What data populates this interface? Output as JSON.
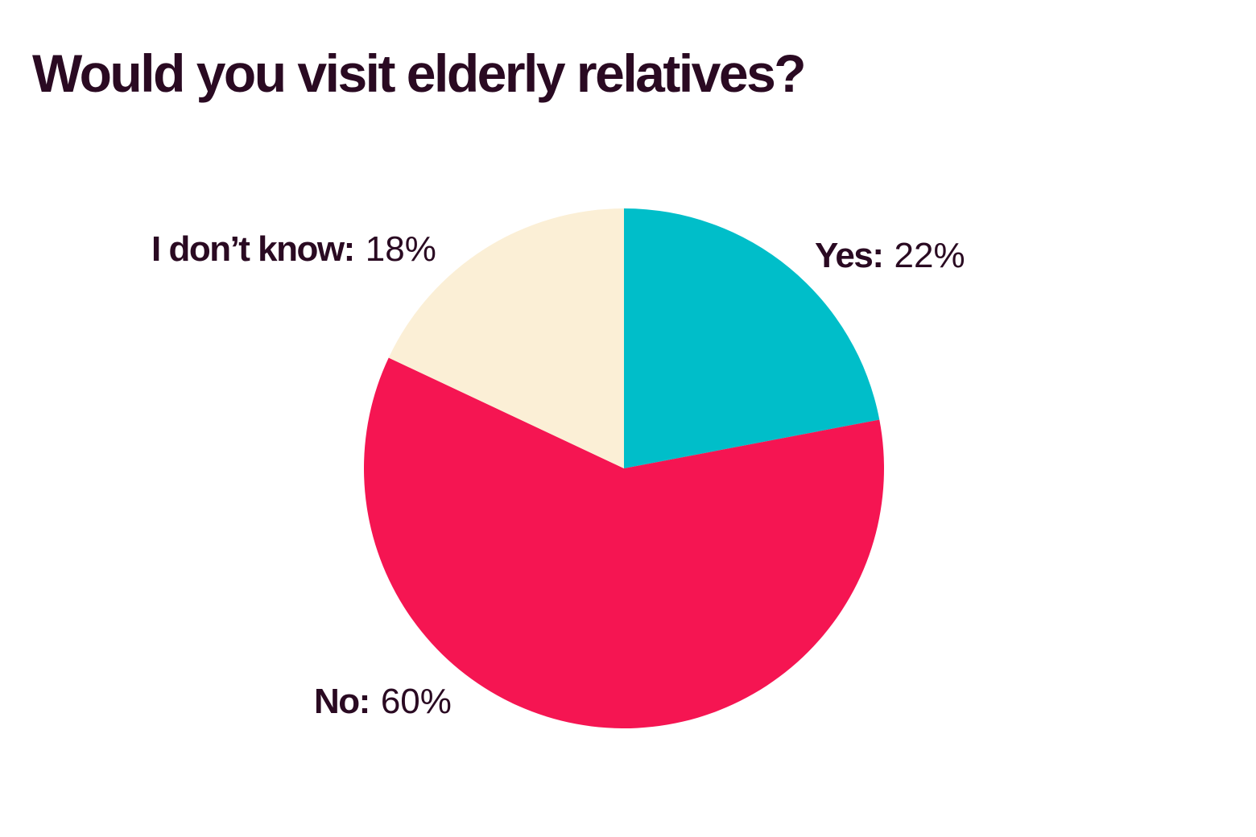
{
  "chart_data": {
    "type": "pie",
    "title": "Would you visit elderly relatives?",
    "start_angle": "12 o'clock",
    "direction": "clockwise",
    "slices": [
      {
        "label": "Yes:",
        "value": 22,
        "display": "22%",
        "color": "#00bec9"
      },
      {
        "label": "No:",
        "value": 60,
        "display": "60%",
        "color": "#f51552"
      },
      {
        "label": "I don’t know:",
        "value": 18,
        "display": "18%",
        "color": "#fbefd6"
      }
    ]
  }
}
